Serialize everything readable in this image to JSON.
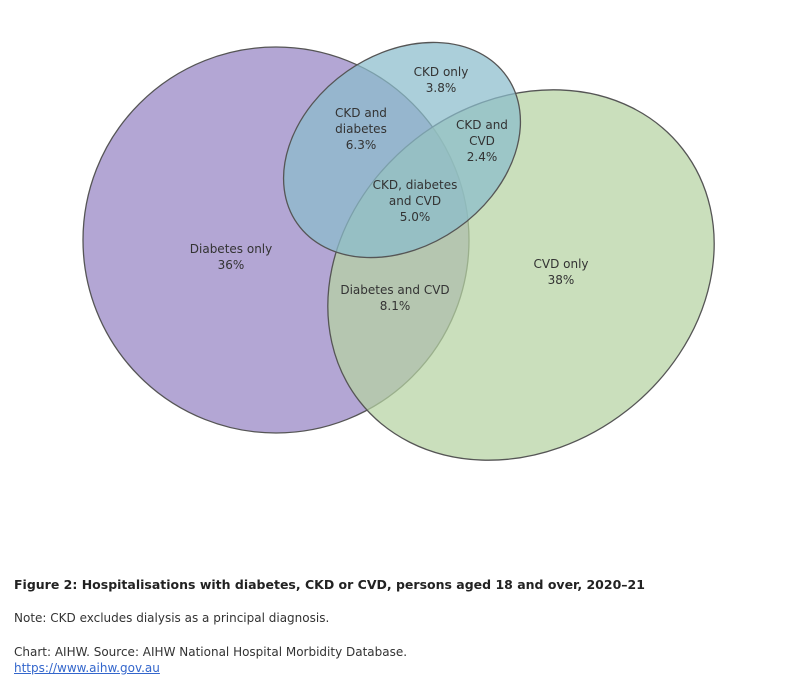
{
  "chart_data": {
    "type": "venn",
    "title": "Figure 2: Hospitalisations with diabetes, CKD or CVD, persons aged 18 and over, 2020–21",
    "note": "Note: CKD excludes dialysis as a principal diagnosis.",
    "source": "Chart: AIHW. Source: AIHW National Hospital Morbidity Database.",
    "link": "https://www.aihw.gov.au",
    "categories": [
      "Diabetes only",
      "CKD only",
      "CVD only",
      "CKD and diabetes",
      "CKD and CVD",
      "Diabetes and CVD",
      "CKD, diabetes and CVD"
    ],
    "values": [
      36,
      3.8,
      38,
      6.3,
      2.4,
      8.1,
      5.0
    ],
    "value_labels": [
      "36%",
      "3.8%",
      "38%",
      "6.3%",
      "2.4%",
      "8.1%",
      "5.0%"
    ],
    "colors": [
      "#b3a6d4",
      "#b6d3a2",
      "#8bbccc"
    ]
  }
}
